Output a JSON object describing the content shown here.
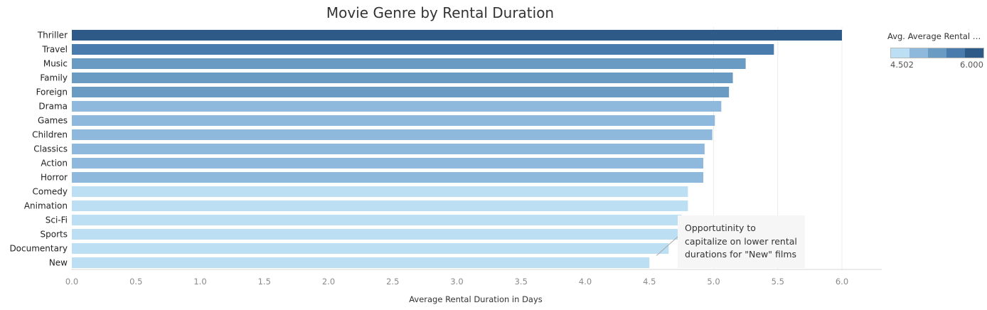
{
  "chart_data": {
    "type": "bar",
    "orientation": "horizontal",
    "title": "Movie Genre by Rental Duration",
    "xlabel": "Average Rental Duration in Days",
    "ylabel": "",
    "xlim": [
      0,
      6.3
    ],
    "x_ticks": [
      "0.0",
      "0.5",
      "1.0",
      "1.5",
      "2.0",
      "2.5",
      "3.0",
      "3.5",
      "4.0",
      "4.5",
      "5.0",
      "5.5",
      "6.0"
    ],
    "grid": "vertical gridlines at 5.0, 5.5 and 6.0",
    "categories": [
      "Thriller",
      "Travel",
      "Music",
      "Family",
      "Foreign",
      "Drama",
      "Games",
      "Children",
      "Classics",
      "Action",
      "Horror",
      "Comedy",
      "Animation",
      "Sci-Fi",
      "Sports",
      "Documentary",
      "New"
    ],
    "values": [
      6.0,
      5.47,
      5.25,
      5.15,
      5.12,
      5.06,
      5.01,
      4.99,
      4.93,
      4.92,
      4.92,
      4.8,
      4.8,
      4.75,
      4.75,
      4.65,
      4.5
    ],
    "colors": [
      "#2e5a87",
      "#4a7bad",
      "#6a9bc3",
      "#6a9bc3",
      "#6a9bc3",
      "#8fb9dc",
      "#8fb9dc",
      "#8fb9dc",
      "#8fb9dc",
      "#8fb9dc",
      "#8fb9dc",
      "#bcdff3",
      "#bcdff3",
      "#bcdff3",
      "#bcdff3",
      "#bcdff3",
      "#bcdff3"
    ],
    "legend": {
      "title": "Avg. Average Rental Du..",
      "min_label": "4.502",
      "max_label": "6.000",
      "placement": "top-right",
      "ramp_colors": [
        "#bcdff3",
        "#8fb9dc",
        "#6a9bc3",
        "#4a7bad",
        "#2e5a87"
      ]
    },
    "annotation": {
      "text": [
        "Opportutinity to",
        "capitalize on lower rental",
        "durations for \"New\" films"
      ],
      "target_category": "New"
    }
  }
}
